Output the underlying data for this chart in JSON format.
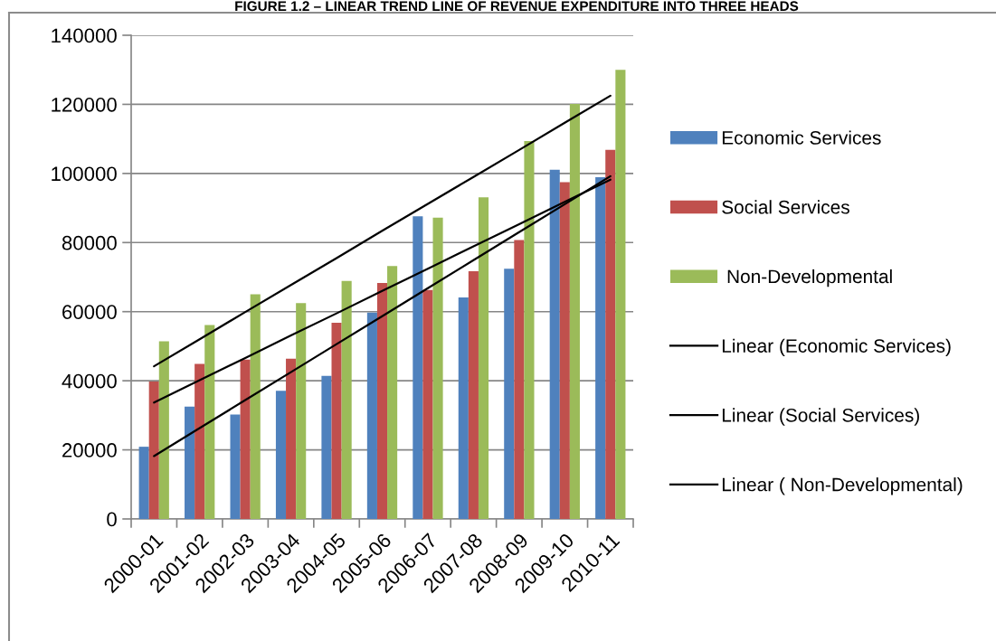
{
  "chart_data": {
    "type": "bar",
    "title": "FIGURE 1.2 – LINEAR TREND LINE OF REVENUE EXPENDITURE INTO THREE HEADS",
    "categories": [
      "2000-01",
      "2001-02",
      "2002-03",
      "2003-04",
      "2004-05",
      "2005-06",
      "2006-07",
      "2007-08",
      "2008-09",
      "2009-10",
      "2010-11"
    ],
    "series": [
      {
        "name": "Economic Services",
        "color": "#4f81bd",
        "values": [
          20900,
          32500,
          30200,
          37100,
          41400,
          59700,
          87600,
          64100,
          72400,
          101100,
          98900
        ]
      },
      {
        "name": "Social Services",
        "color": "#c0504d",
        "values": [
          39800,
          44900,
          46100,
          46400,
          56800,
          68300,
          66300,
          71700,
          80700,
          97500,
          106800
        ]
      },
      {
        "name": " Non-Developmental",
        "color": "#9bbb59",
        "values": [
          51400,
          56100,
          65000,
          62500,
          68900,
          73200,
          87200,
          93100,
          109400,
          120100,
          130000
        ]
      },
      {
        "name": "Linear (Economic Services)",
        "type": "line",
        "color": "#000000",
        "values": [
          18200,
          26300,
          34400,
          42500,
          50600,
          58700,
          66800,
          74900,
          83000,
          91100,
          99200
        ]
      },
      {
        "name": "Linear (Social Services)",
        "type": "line",
        "color": "#000000",
        "values": [
          33700,
          40200,
          46600,
          53100,
          59500,
          66000,
          72400,
          78900,
          85300,
          91800,
          98200
        ]
      },
      {
        "name": "Linear ( Non-Developmental)",
        "type": "line",
        "color": "#000000",
        "values": [
          44200,
          52000,
          59900,
          67700,
          75500,
          83400,
          91200,
          99000,
          106800,
          114700,
          122500
        ]
      }
    ],
    "ylim": [
      0,
      140000
    ],
    "yticks": [
      0,
      20000,
      40000,
      60000,
      80000,
      100000,
      120000,
      140000
    ],
    "grid": "y",
    "legend": "right"
  }
}
